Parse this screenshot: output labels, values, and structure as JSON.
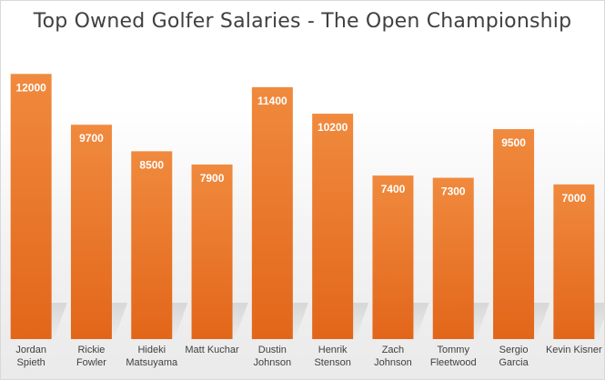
{
  "chart_data": {
    "type": "bar",
    "title": "Top Owned Golfer Salaries - The Open Championship",
    "categories": [
      [
        "Jordan",
        "Spieth"
      ],
      [
        "Rickie",
        "Fowler"
      ],
      [
        "Hideki",
        "Matsuyama"
      ],
      [
        "Matt Kuchar"
      ],
      [
        "Dustin",
        "Johnson"
      ],
      [
        "Henrik",
        "Stenson"
      ],
      [
        "Zach",
        "Johnson"
      ],
      [
        "Tommy",
        "Fleetwood"
      ],
      [
        "Sergio",
        "Garcia"
      ],
      [
        "Kevin Kisner"
      ]
    ],
    "values": [
      12000,
      9700,
      8500,
      7900,
      11400,
      10200,
      7400,
      7300,
      9500,
      7000
    ],
    "ylim": [
      0,
      13000
    ],
    "grid": false,
    "colors": {
      "bar_top": "#f08a3e",
      "bar_bottom": "#e2661a",
      "label": "#ffffff",
      "axis_text": "#404040"
    }
  }
}
